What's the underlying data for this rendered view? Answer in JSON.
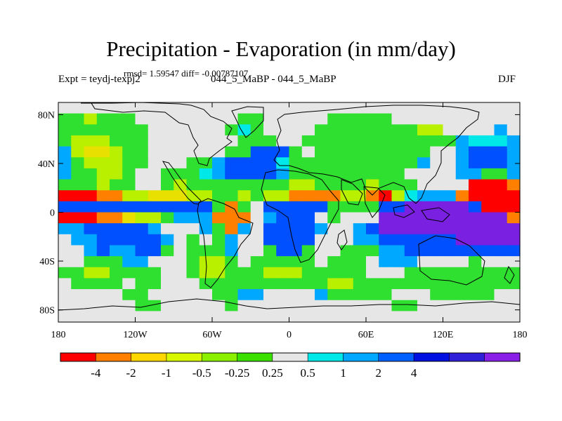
{
  "title": "Precipitation - Evaporation (in mm/day)",
  "stats_text": "rmsd= 1.59547 diff= -0.00787107",
  "left_label": "Expt = teydj-texpj2",
  "center_label": "044_5_MaBP - 044_5_MaBP",
  "right_label": "DJF",
  "latitude_ticks": [
    {
      "label": "80N",
      "lat": 80
    },
    {
      "label": "40N",
      "lat": 40
    },
    {
      "label": "0",
      "lat": 0
    },
    {
      "label": "40S",
      "lat": -40
    },
    {
      "label": "80S",
      "lat": -80
    }
  ],
  "longitude_ticks": [
    {
      "label": "180",
      "lon": -180
    },
    {
      "label": "120W",
      "lon": -120
    },
    {
      "label": "60W",
      "lon": -60
    },
    {
      "label": "0",
      "lon": 0
    },
    {
      "label": "60E",
      "lon": 60
    },
    {
      "label": "120E",
      "lon": 120
    },
    {
      "label": "180",
      "lon": 180
    }
  ],
  "lat_range": [
    -90,
    90
  ],
  "lon_range": [
    -180,
    180
  ],
  "colorbar": {
    "colors": [
      "#ff0000",
      "#ff7f00",
      "#ffd700",
      "#d8f800",
      "#8af000",
      "#3ae000",
      "#e6e6e6",
      "#00e8e8",
      "#00a8ff",
      "#0060ff",
      "#0010e0",
      "#3020d8",
      "#8a20e8"
    ],
    "labels": [
      "-4",
      "-2",
      "-1",
      "-0.5",
      "-0.25",
      "0.25",
      "0.5",
      "1",
      "2",
      "4"
    ]
  },
  "color_key": {
    "R": "#ff0000",
    "O": "#ff8000",
    "Y": "#e8e000",
    "L": "#b8f000",
    "G": "#30e030",
    "W": "#e6e6e6",
    "C": "#00e8e8",
    "S": "#00a8ff",
    "B": "#0050ff",
    "D": "#0010e0",
    "P": "#7a20e0"
  },
  "field_grid": [
    "WWWWWWWWWWWWWWWWWWWWWWWWWWWWWWWWWWWW",
    "GGLGGGWWWWWWWWGGWWWWWGGGGGWWWWWWWWWW",
    "GGGGGGGWWWWWWGCGWWWWGGGGGGGGLLWWWWSW",
    "GLLLGGGWWWWWWWGGGWWGGGGGGGGGGGGSCCCS",
    "SLYYLGGWWWWWWGGBBBGWGGGGGGGGGWWSBBBS",
    "SGLLLGGWWWGGSBBBBCGGGGGGGGGGSWWSBBBS",
    "SGGLLGWWGGGCSBBBBSGGGGGGGGGWWWWSSGGS",
    "GGGLGGWWGLGGGGGGGGLLGGGGLGGGWWWWRRRO",
    "RRROOLLYYYLLGGLGLLOOOOLLORLCSSSORRRR",
    "BBBBBBBBBBBBGOGWBBBBBGGGGBBPPPPPBRRR",
    "RRROOYLLGSSSOOOWSBBBWGWWWPPPPPPPPPPO",
    "SSBBBBBSWWWSGOSWBBBBSWWSBPPPPPPPPPPP",
    "WSSBBBBBSWGWGSWWBBBBWWWSSBBBBBBPPPPP",
    "WWSBSSBBGWGGGSWWGBBGWWGGGSSBBBBBBBBB",
    "WWGGGSSWWWGLLGWGGGGGWGGGWSSSWWWWGWWW",
    "GGLLGGGGWWGLLGGGLLLGGGGGWWWGGGGGGGGG",
    "WGGGGWGGWWWGGGGGGGGGGLLGGGGGGGGGGGGG",
    "WWWWWGGWWWWWGGSSWWWWSGGGGGWWWGGGGGWW",
    "WWWWWWGGWWWWWGWWWWWWWWWWWWGGWWWWWWWW",
    "WWWWWWWWWWWWWWWWWWWWWWWWWWWWWWWWWWWW"
  ]
}
